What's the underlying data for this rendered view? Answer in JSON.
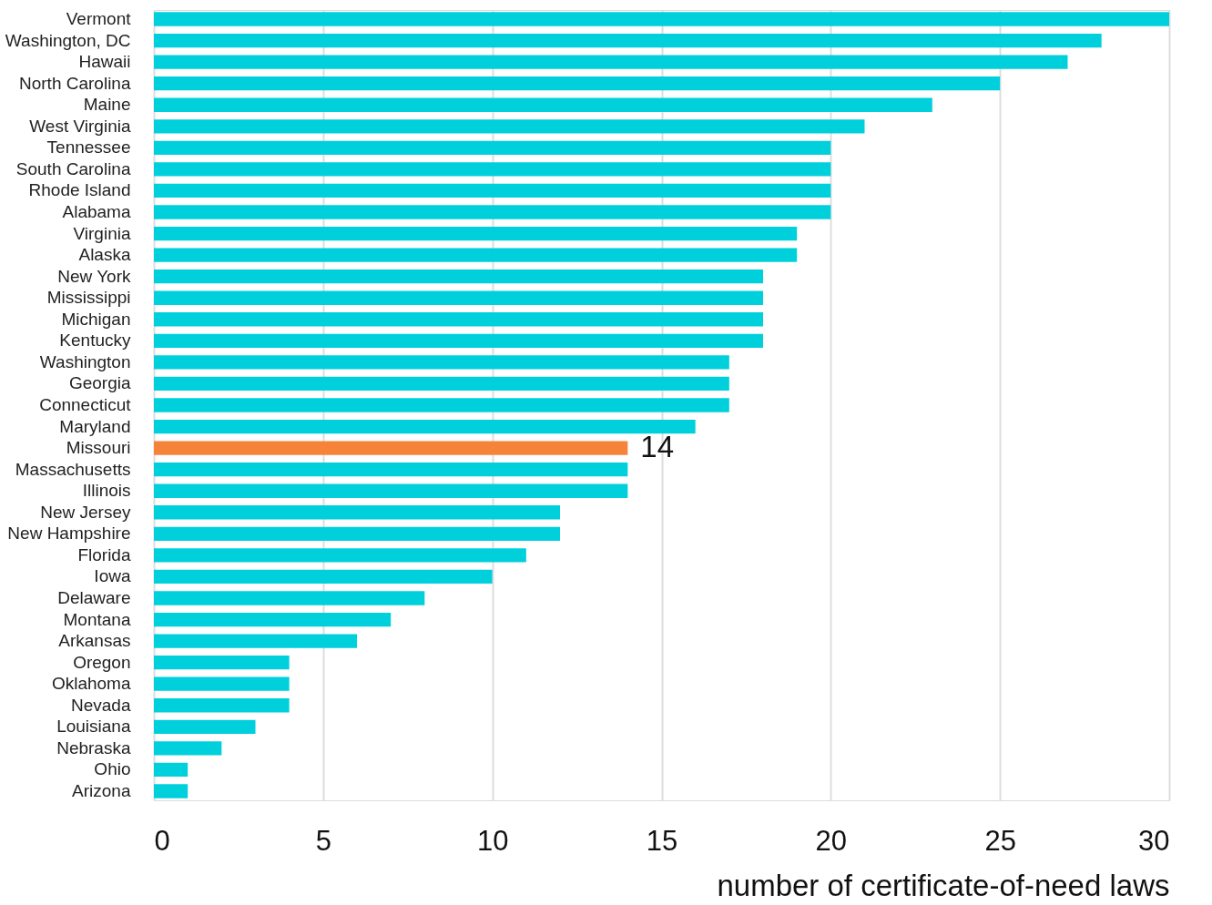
{
  "chart_data": {
    "type": "bar",
    "orientation": "horizontal",
    "xlabel": "number of certificate-of-need laws",
    "categories": [
      "Vermont",
      "Washington, DC",
      "Hawaii",
      "North Carolina",
      "Maine",
      "West Virginia",
      "Tennessee",
      "South Carolina",
      "Rhode Island",
      "Alabama",
      "Virginia",
      "Alaska",
      "New York",
      "Mississippi",
      "Michigan",
      "Kentucky",
      "Washington",
      "Georgia",
      "Connecticut",
      "Maryland",
      "Missouri",
      "Massachusetts",
      "Illinois",
      "New Jersey",
      "New Hampshire",
      "Florida",
      "Iowa",
      "Delaware",
      "Montana",
      "Arkansas",
      "Oregon",
      "Oklahoma",
      "Nevada",
      "Louisiana",
      "Nebraska",
      "Ohio",
      "Arizona"
    ],
    "values": [
      30,
      28,
      27,
      25,
      23,
      21,
      20,
      20,
      20,
      20,
      19,
      19,
      18,
      18,
      18,
      18,
      17,
      17,
      17,
      16,
      14,
      14,
      14,
      12,
      12,
      11,
      10,
      8,
      7,
      6,
      4,
      4,
      4,
      3,
      2,
      1,
      1
    ],
    "colors": [
      "#00d0dc",
      "#00d0dc",
      "#00d0dc",
      "#00d0dc",
      "#00d0dc",
      "#00d0dc",
      "#00d0dc",
      "#00d0dc",
      "#00d0dc",
      "#00d0dc",
      "#00d0dc",
      "#00d0dc",
      "#00d0dc",
      "#00d0dc",
      "#00d0dc",
      "#00d0dc",
      "#00d0dc",
      "#00d0dc",
      "#00d0dc",
      "#00d0dc",
      "#f5843a",
      "#00d0dc",
      "#00d0dc",
      "#00d0dc",
      "#00d0dc",
      "#00d0dc",
      "#00d0dc",
      "#00d0dc",
      "#00d0dc",
      "#00d0dc",
      "#00d0dc",
      "#00d0dc",
      "#00d0dc",
      "#00d0dc",
      "#00d0dc",
      "#00d0dc",
      "#00d0dc"
    ],
    "value_labels": [
      null,
      null,
      null,
      null,
      null,
      null,
      null,
      null,
      null,
      null,
      null,
      null,
      null,
      null,
      null,
      null,
      null,
      null,
      null,
      null,
      "14",
      null,
      null,
      null,
      null,
      null,
      null,
      null,
      null,
      null,
      null,
      null,
      null,
      null,
      null,
      null,
      null
    ],
    "xlim": [
      0,
      30
    ],
    "xticks": [
      0,
      5,
      10,
      15,
      20,
      25,
      30
    ],
    "grid": "x"
  }
}
